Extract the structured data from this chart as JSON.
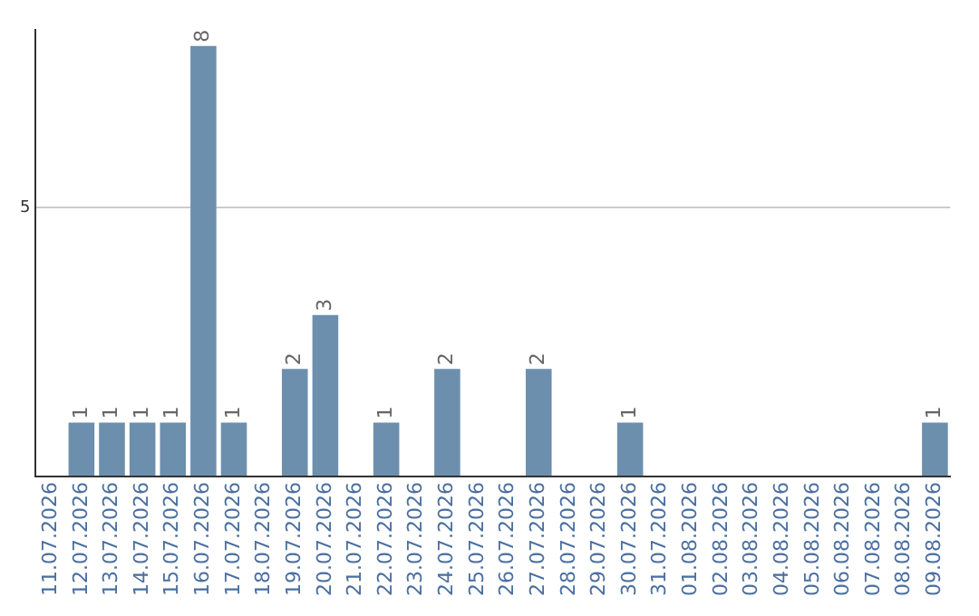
{
  "chart_data": {
    "type": "bar",
    "categories": [
      "11.07.2026",
      "12.07.2026",
      "13.07.2026",
      "14.07.2026",
      "15.07.2026",
      "16.07.2026",
      "17.07.2026",
      "18.07.2026",
      "19.07.2026",
      "20.07.2026",
      "21.07.2026",
      "22.07.2026",
      "23.07.2026",
      "24.07.2026",
      "25.07.2026",
      "26.07.2026",
      "27.07.2026",
      "28.07.2026",
      "29.07.2026",
      "30.07.2026",
      "31.07.2026",
      "01.08.2026",
      "02.08.2026",
      "03.08.2026",
      "04.08.2026",
      "05.08.2026",
      "06.08.2026",
      "07.08.2026",
      "08.08.2026",
      "09.08.2026"
    ],
    "values": [
      0,
      1,
      1,
      1,
      1,
      8,
      1,
      0,
      2,
      3,
      0,
      1,
      0,
      2,
      0,
      0,
      2,
      0,
      0,
      1,
      0,
      0,
      0,
      0,
      0,
      0,
      0,
      0,
      0,
      1
    ],
    "value_labels": [
      null,
      "1",
      "1",
      "1",
      "1",
      "8",
      "1",
      null,
      "2",
      "3",
      null,
      "1",
      null,
      "2",
      null,
      null,
      "2",
      null,
      null,
      "1",
      null,
      null,
      null,
      null,
      null,
      null,
      null,
      null,
      null,
      "1"
    ],
    "color": "#6d8fae",
    "ylim": [
      0,
      8.3
    ],
    "yticks": [
      {
        "value": 0,
        "label": null
      },
      5
    ],
    "grid": "y",
    "legend": false
  }
}
